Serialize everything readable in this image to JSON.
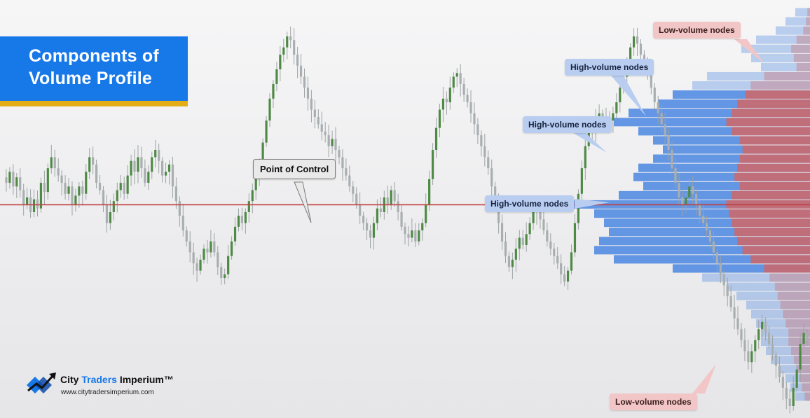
{
  "title": {
    "line1": "Components of",
    "line2": "Volume Profile"
  },
  "annotations": {
    "poc": "Point of Control",
    "hvn1": "High-volume nodes",
    "hvn2": "High-volume nodes",
    "hvn3": "High-volume nodes",
    "lvn_top": "Low-volume nodes",
    "lvn_bottom": "Low-volume nodes"
  },
  "brand": {
    "name_part1": "City ",
    "name_part2": "Traders",
    "name_part3": " Imperium™",
    "url": "www.citytradersimperium.com"
  },
  "colors": {
    "title_bg": "#1778e8",
    "title_underline": "#e3ad17",
    "candle_up": "#4f8a45",
    "candle_down": "#a9aeb0",
    "poc_line": "#c24141",
    "volume_blue": "#4a86e0",
    "volume_red": "#cf6767"
  },
  "chart_data": {
    "type": "line",
    "title": "",
    "xlabel": "",
    "ylabel": "",
    "grid": false,
    "price_path": [
      0.55,
      0.52,
      0.58,
      0.5,
      0.55,
      0.48,
      0.4,
      0.44,
      0.36,
      0.43,
      0.38,
      0.52,
      0.47,
      0.6,
      0.66,
      0.6,
      0.56,
      0.52,
      0.46,
      0.5,
      0.4,
      0.45,
      0.5,
      0.46,
      0.58,
      0.66,
      0.62,
      0.52,
      0.48,
      0.4,
      0.3,
      0.36,
      0.42,
      0.48,
      0.52,
      0.46,
      0.56,
      0.64,
      0.58,
      0.66,
      0.6,
      0.52,
      0.58,
      0.66,
      0.7,
      0.64,
      0.56,
      0.58,
      0.62,
      0.5,
      0.42,
      0.34,
      0.26,
      0.2,
      0.14,
      0.08,
      0.04,
      0.1,
      0.16,
      0.14,
      0.2,
      0.14,
      0.06,
      0.0,
      0.02,
      0.12,
      0.2,
      0.28,
      0.34,
      0.3,
      0.36,
      0.42,
      0.48,
      0.54,
      0.62,
      0.74,
      0.86,
      0.98,
      1.06,
      1.14,
      1.22,
      1.26,
      1.32,
      1.3,
      1.22,
      1.16,
      1.1,
      1.04,
      0.98,
      0.92,
      0.88,
      0.84,
      0.8,
      0.78,
      0.72,
      0.76,
      0.7,
      0.66,
      0.6,
      0.56,
      0.5,
      0.46,
      0.4,
      0.34,
      0.3,
      0.26,
      0.22,
      0.3,
      0.38,
      0.36,
      0.44,
      0.4,
      0.48,
      0.42,
      0.36,
      0.28,
      0.24,
      0.22,
      0.26,
      0.2,
      0.26,
      0.3,
      0.4,
      0.54,
      0.7,
      0.82,
      0.92,
      0.98,
      0.96,
      1.04,
      1.1,
      1.12,
      1.06,
      1.0,
      0.96,
      0.9,
      0.84,
      0.78,
      0.72,
      0.66,
      0.6,
      0.5,
      0.4,
      0.3,
      0.2,
      0.12,
      0.06,
      0.1,
      0.16,
      0.22,
      0.18,
      0.24,
      0.3,
      0.36,
      0.38,
      0.32,
      0.26,
      0.2,
      0.16,
      0.12,
      0.08,
      0.02,
      -0.02,
      0.04,
      0.14,
      0.3,
      0.46,
      0.6,
      0.72,
      0.82,
      0.8,
      0.86,
      0.9,
      0.88,
      0.84,
      0.86,
      0.9,
      0.96,
      1.04,
      1.1,
      1.18,
      1.26,
      1.32,
      1.28,
      1.22,
      1.18,
      1.12,
      1.04,
      0.96,
      0.9,
      0.84,
      0.78,
      0.7,
      0.6,
      0.52,
      0.44,
      0.4,
      0.44,
      0.5,
      0.46,
      0.4,
      0.34,
      0.3,
      0.26,
      0.2,
      0.14,
      0.08,
      0.02,
      -0.04,
      -0.1,
      -0.16,
      -0.22,
      -0.28,
      -0.34,
      -0.4,
      -0.46,
      -0.4,
      -0.34,
      -0.28,
      -0.24,
      -0.3,
      -0.36,
      -0.42,
      -0.48,
      -0.54,
      -0.6,
      -0.66,
      -0.7,
      -0.6,
      -0.5,
      -0.36,
      -0.3,
      -0.34
    ],
    "point_of_control": 0.4,
    "volume_profile": {
      "levels": [
        1.45,
        1.4,
        1.35,
        1.3,
        1.25,
        1.2,
        1.15,
        1.1,
        1.05,
        1.0,
        0.95,
        0.9,
        0.85,
        0.8,
        0.75,
        0.7,
        0.65,
        0.6,
        0.55,
        0.5,
        0.45,
        0.4,
        0.35,
        0.3,
        0.25,
        0.2,
        0.15,
        0.1,
        0.05,
        0.0,
        -0.05,
        -0.1,
        -0.15,
        -0.2,
        -0.25,
        -0.3,
        -0.35,
        -0.4,
        -0.45,
        -0.5,
        -0.55,
        -0.6,
        -0.65
      ],
      "up_volume": [
        6,
        10,
        14,
        22,
        28,
        24,
        20,
        42,
        48,
        56,
        62,
        74,
        80,
        70,
        64,
        60,
        64,
        70,
        72,
        68,
        78,
        100,
        88,
        84,
        82,
        86,
        88,
        80,
        56,
        44,
        34,
        30,
        26,
        24,
        22,
        20,
        20,
        18,
        16,
        12,
        10,
        8,
        6
      ],
      "down_volume": [
        2,
        3,
        5,
        10,
        14,
        12,
        10,
        34,
        44,
        48,
        54,
        58,
        62,
        58,
        52,
        50,
        52,
        54,
        56,
        52,
        58,
        62,
        60,
        58,
        56,
        54,
        50,
        44,
        34,
        30,
        26,
        24,
        22,
        20,
        18,
        16,
        16,
        14,
        12,
        10,
        8,
        6,
        4
      ]
    }
  }
}
